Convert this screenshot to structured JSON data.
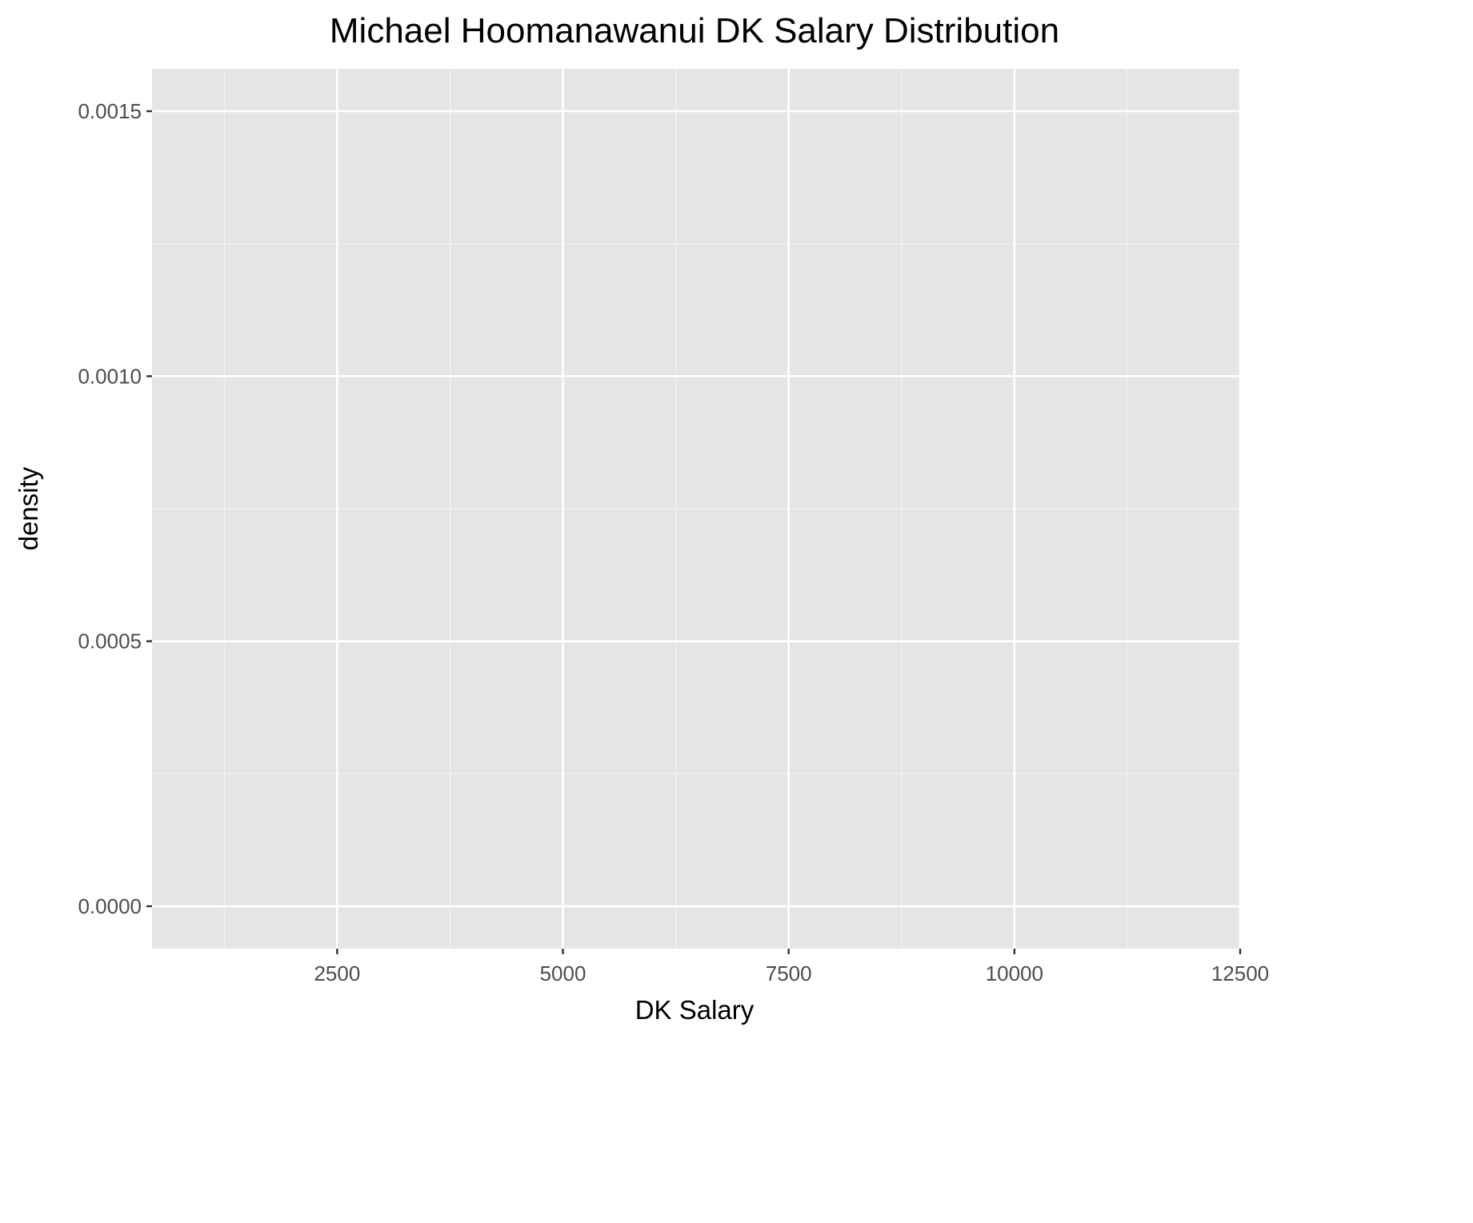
{
  "chart_data": {
    "type": "area",
    "title": "Michael Hoomanawanui DK Salary Distribution",
    "xlabel": "DK Salary",
    "ylabel": "density",
    "xlim": [
      450,
      12500
    ],
    "ylim": [
      -8e-05,
      0.00158
    ],
    "x_ticks": [
      {
        "value": 2500,
        "label": "2500"
      },
      {
        "value": 5000,
        "label": "5000"
      },
      {
        "value": 7500,
        "label": "7500"
      },
      {
        "value": 10000,
        "label": "10000"
      },
      {
        "value": 12500,
        "label": "12500"
      }
    ],
    "y_ticks": [
      {
        "value": 0,
        "label": "0.0000"
      },
      {
        "value": 0.0005,
        "label": "0.0005"
      },
      {
        "value": 0.001,
        "label": "0.0010"
      },
      {
        "value": 0.0015,
        "label": "0.0015"
      }
    ],
    "x_minor_breaks": [
      1250,
      3750,
      6250,
      8750,
      11250
    ],
    "y_minor_breaks": [
      0.00025,
      0.00075,
      0.00125
    ],
    "series": [],
    "grid": true,
    "legend": "none",
    "colors": {
      "panel_background": "#e5e5e5",
      "grid_major": "#ffffff",
      "grid_minor": "#f2f2f2",
      "tick_mark": "#333333",
      "tick_label": "#4d4d4d",
      "text": "#000000"
    }
  }
}
